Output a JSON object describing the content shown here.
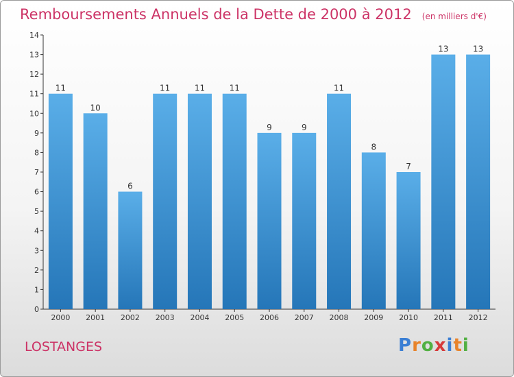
{
  "title": "Remboursements Annuels de la Dette de 2000 à 2012",
  "unit": "(en milliers d'€)",
  "commune": "LOSTANGES",
  "logo": {
    "letters": [
      "P",
      "r",
      "o",
      "x",
      "i",
      "t",
      "i"
    ],
    "colors": [
      "#3b7fd4",
      "#e8832a",
      "#52b043",
      "#d63a3a",
      "#3b7fd4",
      "#e8832a",
      "#52b043"
    ]
  },
  "colors": {
    "title": "#cc3366",
    "bar_light": "#5aaee8",
    "bar_dark": "#2576b8",
    "axis": "#333333"
  },
  "chart_data": {
    "type": "bar",
    "categories": [
      "2000",
      "2001",
      "2002",
      "2003",
      "2004",
      "2005",
      "2006",
      "2007",
      "2008",
      "2009",
      "2010",
      "2011",
      "2012"
    ],
    "values": [
      11,
      10,
      6,
      11,
      11,
      11,
      9,
      9,
      11,
      8,
      7,
      13,
      13
    ],
    "ylim": [
      0,
      14
    ],
    "yticks": [
      "0",
      "1",
      "2",
      "3",
      "4",
      "5",
      "6",
      "7",
      "8",
      "9",
      "10",
      "11",
      "12",
      "13",
      "14"
    ],
    "grid": false,
    "legend": "none"
  }
}
